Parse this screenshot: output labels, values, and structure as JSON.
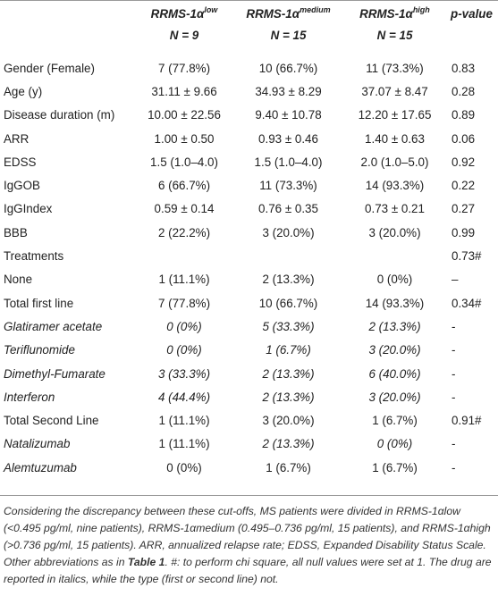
{
  "header": {
    "col1_name": "RRMS-1α",
    "col1_sup": "low",
    "col1_n": "N = 9",
    "col2_name": "RRMS-1α",
    "col2_sup": "medium",
    "col2_n": "N = 15",
    "col3_name": "RRMS-1α",
    "col3_sup": "high",
    "col3_n": "N = 15",
    "pvalue": "p-value"
  },
  "rows": [
    {
      "label": "Gender (Female)",
      "c1": "7 (77.8%)",
      "c2": "10 (66.7%)",
      "c3": "11 (73.3%)",
      "p": "0.83"
    },
    {
      "label": "Age (y)",
      "c1": "31.11 ± 9.66",
      "c2": "34.93 ± 8.29",
      "c3": "37.07 ± 8.47",
      "p": "0.28"
    },
    {
      "label": "Disease duration (m)",
      "c1": "10.00 ± 22.56",
      "c2": "9.40 ± 10.78",
      "c3": "12.20 ± 17.65",
      "p": "0.89"
    },
    {
      "label": "ARR",
      "c1": "1.00 ± 0.50",
      "c2": "0.93 ± 0.46",
      "c3": "1.40 ± 0.63",
      "p": "0.06"
    },
    {
      "label": "EDSS",
      "c1": "1.5 (1.0–4.0)",
      "c2": "1.5 (1.0–4.0)",
      "c3": "2.0 (1.0–5.0)",
      "p": "0.92"
    },
    {
      "label": "IgGOB",
      "c1": "6 (66.7%)",
      "c2": "11 (73.3%)",
      "c3": "14 (93.3%)",
      "p": "0.22"
    },
    {
      "label": "IgGIndex",
      "c1": "0.59 ± 0.14",
      "c2": "0.76 ± 0.35",
      "c3": "0.73 ± 0.21",
      "p": "0.27"
    },
    {
      "label": "BBB",
      "c1": "2 (22.2%)",
      "c2": "3 (20.0%)",
      "c3": "3 (20.0%)",
      "p": "0.99"
    },
    {
      "label": "Treatments",
      "c1": "",
      "c2": "",
      "c3": "",
      "p": "0.73#"
    },
    {
      "label": "None",
      "c1": "1 (11.1%)",
      "c2": "2 (13.3%)",
      "c3": "0 (0%)",
      "p": "–"
    },
    {
      "label": "Total first line",
      "c1": "7 (77.8%)",
      "c2": "10 (66.7%)",
      "c3": "14 (93.3%)",
      "p": "0.34#"
    },
    {
      "label": "Glatiramer acetate",
      "c1": "0 (0%)",
      "c2": "5 (33.3%)",
      "c3": "2 (13.3%)",
      "p": "-"
    },
    {
      "label": "Teriflunomide",
      "c1": "0 (0%)",
      "c2": "1 (6.7%)",
      "c3": "3 (20.0%)",
      "p": "-"
    },
    {
      "label": "Dimethyl-Fumarate",
      "c1": "3 (33.3%)",
      "c2": "2 (13.3%)",
      "c3": "6 (40.0%)",
      "p": "-"
    },
    {
      "label": "Interferon",
      "c1": "4 (44.4%)",
      "c2": "2 (13.3%)",
      "c3": "3 (20.0%)",
      "p": "-"
    },
    {
      "label": "Total Second Line",
      "c1": "1 (11.1%)",
      "c2": "3 (20.0%)",
      "c3": "1 (6.7%)",
      "p": "0.91#"
    },
    {
      "label": "Natalizumab",
      "c1": "1 (11.1%)",
      "c2": "2 (13.3%)",
      "c3": "0 (0%)",
      "p": "-"
    },
    {
      "label": "Alemtuzumab",
      "c1": "0 (0%)",
      "c2": "1 (6.7%)",
      "c3": "1 (6.7%)",
      "p": "-"
    }
  ],
  "caption": {
    "part1": "Considering the discrepancy between these cut-offs, MS patients were divided in RRMS-1αlow (<0.495 pg/ml, nine patients), RRMS-1αmedium (0.495–0.736 pg/ml, 15 patients), and RRMS-1αhigh (>0.736 pg/ml, 15 patients). ARR, annualized relapse rate; EDSS, Expanded Disability Status Scale. Other abbreviations as in ",
    "ref": "Table 1",
    "part2": ". #: to perform chi square, all null values were set at 1. The drug are reported in italics, while the type (first or second line) not."
  }
}
